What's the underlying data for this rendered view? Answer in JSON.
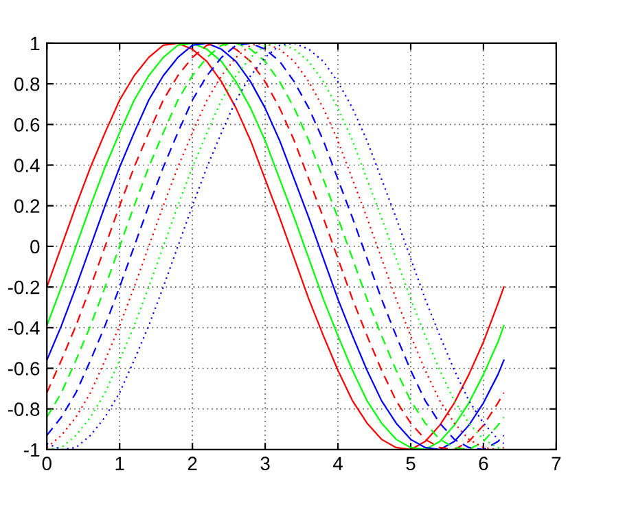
{
  "chart_data": {
    "type": "line",
    "x": [
      0,
      0.2,
      0.4,
      0.6,
      0.8,
      1.0,
      1.2,
      1.4,
      1.6,
      1.8,
      2.0,
      2.2,
      2.4,
      2.6,
      2.8,
      3.0,
      3.2,
      3.4,
      3.6,
      3.8,
      4.0,
      4.2,
      4.4,
      4.6,
      4.8,
      5.0,
      5.2,
      5.4,
      5.6,
      5.8,
      6.0,
      6.2,
      6.28
    ],
    "series": [
      {
        "color": "#ff0000",
        "line_style": "solid",
        "values": [
          -0.2,
          0,
          0.2,
          0.39,
          0.56,
          0.72,
          0.84,
          0.93,
          0.99,
          1.0,
          0.97,
          0.91,
          0.81,
          0.68,
          0.52,
          0.33,
          0.14,
          -0.06,
          -0.26,
          -0.44,
          -0.61,
          -0.76,
          -0.87,
          -0.95,
          -0.99,
          -1.0,
          -0.96,
          -0.88,
          -0.77,
          -0.63,
          -0.47,
          -0.28,
          -0.2
        ]
      },
      {
        "color": "#00ff00",
        "line_style": "solid",
        "values": [
          -0.39,
          -0.2,
          0,
          0.2,
          0.39,
          0.56,
          0.72,
          0.84,
          0.93,
          0.99,
          1.0,
          0.97,
          0.91,
          0.81,
          0.68,
          0.52,
          0.33,
          0.14,
          -0.06,
          -0.26,
          -0.44,
          -0.61,
          -0.76,
          -0.87,
          -0.95,
          -0.99,
          -1.0,
          -0.96,
          -0.88,
          -0.77,
          -0.63,
          -0.47,
          -0.39
        ]
      },
      {
        "color": "#0000ff",
        "line_style": "solid",
        "values": [
          -0.56,
          -0.39,
          -0.2,
          0,
          0.2,
          0.39,
          0.56,
          0.72,
          0.84,
          0.93,
          0.99,
          1.0,
          0.97,
          0.91,
          0.81,
          0.68,
          0.52,
          0.33,
          0.14,
          -0.06,
          -0.26,
          -0.44,
          -0.61,
          -0.76,
          -0.87,
          -0.95,
          -0.99,
          -1.0,
          -0.96,
          -0.88,
          -0.77,
          -0.63,
          -0.56
        ]
      },
      {
        "color": "#ff0000",
        "line_style": "dashed",
        "values": [
          -0.72,
          -0.56,
          -0.39,
          -0.2,
          0,
          0.2,
          0.39,
          0.56,
          0.72,
          0.84,
          0.93,
          0.99,
          1.0,
          0.97,
          0.91,
          0.81,
          0.68,
          0.52,
          0.33,
          0.14,
          -0.06,
          -0.26,
          -0.44,
          -0.61,
          -0.76,
          -0.87,
          -0.95,
          -0.99,
          -1.0,
          -0.96,
          -0.88,
          -0.77,
          -0.72
        ]
      },
      {
        "color": "#00ff00",
        "line_style": "dashed",
        "values": [
          -0.84,
          -0.72,
          -0.56,
          -0.39,
          -0.2,
          0,
          0.2,
          0.39,
          0.56,
          0.72,
          0.84,
          0.93,
          0.99,
          1.0,
          0.97,
          0.91,
          0.81,
          0.68,
          0.52,
          0.33,
          0.14,
          -0.06,
          -0.26,
          -0.44,
          -0.61,
          -0.76,
          -0.87,
          -0.95,
          -0.99,
          -1.0,
          -0.96,
          -0.88,
          -0.84
        ]
      },
      {
        "color": "#0000ff",
        "line_style": "dashed",
        "values": [
          -0.93,
          -0.84,
          -0.72,
          -0.56,
          -0.39,
          -0.2,
          0,
          0.2,
          0.39,
          0.56,
          0.72,
          0.84,
          0.93,
          0.99,
          1.0,
          0.97,
          0.91,
          0.81,
          0.68,
          0.52,
          0.33,
          0.14,
          -0.06,
          -0.26,
          -0.44,
          -0.61,
          -0.76,
          -0.87,
          -0.95,
          -0.99,
          -1.0,
          -0.96,
          -0.93
        ]
      },
      {
        "color": "#ff0000",
        "line_style": "dotted",
        "values": [
          -0.99,
          -0.93,
          -0.84,
          -0.72,
          -0.56,
          -0.39,
          -0.2,
          0,
          0.2,
          0.39,
          0.56,
          0.72,
          0.84,
          0.93,
          0.99,
          1.0,
          0.97,
          0.91,
          0.81,
          0.68,
          0.52,
          0.33,
          0.14,
          -0.06,
          -0.26,
          -0.44,
          -0.61,
          -0.76,
          -0.87,
          -0.95,
          -0.99,
          -1.0,
          -0.99
        ]
      },
      {
        "color": "#00ff00",
        "line_style": "dotted",
        "values": [
          -1.0,
          -0.99,
          -0.93,
          -0.84,
          -0.72,
          -0.56,
          -0.39,
          -0.2,
          0,
          0.2,
          0.39,
          0.56,
          0.72,
          0.84,
          0.93,
          0.99,
          1.0,
          0.97,
          0.91,
          0.81,
          0.68,
          0.52,
          0.33,
          0.14,
          -0.06,
          -0.26,
          -0.44,
          -0.61,
          -0.76,
          -0.87,
          -0.95,
          -0.99,
          -1.0
        ]
      },
      {
        "color": "#0000ff",
        "line_style": "dotted",
        "values": [
          -0.97,
          -1.0,
          -0.99,
          -0.93,
          -0.84,
          -0.72,
          -0.56,
          -0.39,
          -0.2,
          0,
          0.2,
          0.39,
          0.56,
          0.72,
          0.84,
          0.93,
          0.99,
          1.0,
          0.97,
          0.91,
          0.81,
          0.68,
          0.52,
          0.33,
          0.14,
          -0.06,
          -0.26,
          -0.44,
          -0.61,
          -0.76,
          -0.87,
          -0.95,
          -0.97
        ]
      }
    ],
    "xlim": [
      0,
      7
    ],
    "xticks": [
      0,
      1,
      2,
      3,
      4,
      5,
      6,
      7
    ],
    "ylim": [
      -1,
      1
    ],
    "yticks": [
      -1,
      -0.8,
      -0.6,
      -0.4,
      -0.2,
      0,
      0.2,
      0.4,
      0.6,
      0.8,
      1
    ],
    "grid": true,
    "legend": false
  }
}
